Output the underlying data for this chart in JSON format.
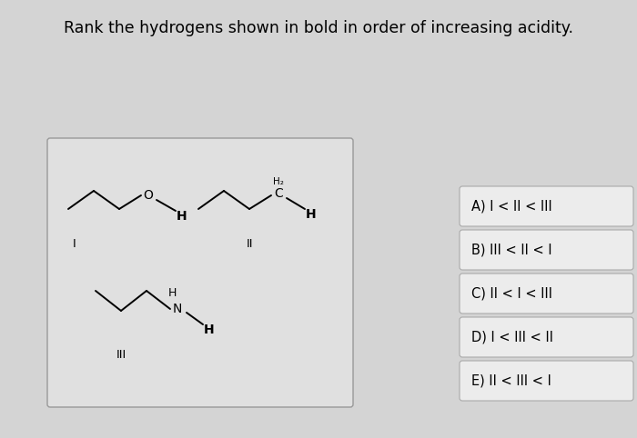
{
  "title": "Rank the hydrogens shown in bold in order of increasing acidity.",
  "title_fontsize": 12.5,
  "bg_color": "#d4d4d4",
  "mol_box_color": "#e0e0e0",
  "choice_box_color": "#ececec",
  "choice_border_color": "#aaaaaa",
  "choices": [
    "A) I < II < III",
    "B) III < II < I",
    "C) II < I < III",
    "D) I < III < II",
    "E) II < III < I"
  ],
  "choice_fontsize": 10.5,
  "mol_label_I": "I",
  "mol_label_II": "II",
  "mol_label_III": "III"
}
